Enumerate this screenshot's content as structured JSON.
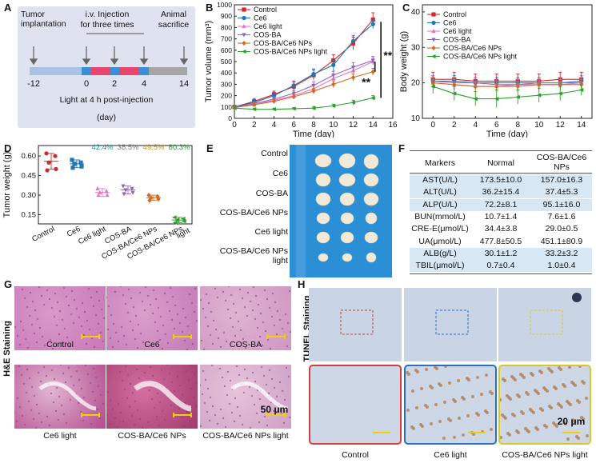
{
  "panels": {
    "A": "A",
    "B": "B",
    "C": "C",
    "D": "D",
    "E": "E",
    "F": "F",
    "G": "G",
    "H": "H"
  },
  "timeline": {
    "tumor_implantation": "Tumor implantation",
    "injection_line1": "i.v. Injection",
    "injection_line2": "for three times",
    "animal_line1": "Animal",
    "animal_line2": "sacrifice",
    "ticks": [
      "-12",
      "0",
      "2",
      "4",
      "14"
    ],
    "light_note": "Light at 4 h post-injection",
    "unit": "(day)",
    "colors": {
      "grey": "#a5a5a5",
      "blue": "#3b8fd6",
      "pink": "#e8446e",
      "lightblue": "#a9c3e6",
      "bg": "#dfe3ef"
    }
  },
  "chart_data": [
    {
      "panel": "B",
      "type": "line",
      "x": [
        0,
        2,
        4,
        6,
        8,
        10,
        12,
        14
      ],
      "xlabel": "Time (day)",
      "ylabel": "Tumor volume (mm³)",
      "xlim": [
        0,
        16
      ],
      "ylim": [
        0,
        1000
      ],
      "xticks": [
        "0",
        "2",
        "4",
        "6",
        "8",
        "10",
        "12",
        "14",
        "16"
      ],
      "yticks": [
        "0",
        "100",
        "200",
        "300",
        "400",
        "500",
        "600",
        "700",
        "800",
        "900",
        "1000"
      ],
      "annotations": [
        "**",
        "**"
      ],
      "series": [
        {
          "name": "Control",
          "color": "#d62728",
          "marker": "square",
          "values": [
            100,
            150,
            210,
            280,
            380,
            510,
            660,
            870
          ],
          "err": [
            15,
            25,
            30,
            40,
            45,
            50,
            55,
            60
          ]
        },
        {
          "name": "Ce6",
          "color": "#1f77b4",
          "marker": "circle",
          "values": [
            100,
            140,
            200,
            290,
            390,
            470,
            680,
            830
          ],
          "err": [
            15,
            25,
            30,
            40,
            45,
            55,
            50,
            40
          ]
        },
        {
          "name": "Ce6 light",
          "color": "#e377c2",
          "marker": "triangle",
          "values": [
            95,
            120,
            160,
            200,
            260,
            350,
            420,
            500
          ],
          "err": [
            10,
            15,
            20,
            25,
            30,
            35,
            40,
            30
          ]
        },
        {
          "name": "COS-BA",
          "color": "#9467bd",
          "marker": "triangle-down",
          "values": [
            95,
            130,
            170,
            220,
            290,
            380,
            450,
            510
          ],
          "err": [
            10,
            15,
            20,
            25,
            30,
            35,
            40,
            35
          ]
        },
        {
          "name": "COS-BA/Ce6 NPs",
          "color": "#d2691e",
          "marker": "diamond",
          "values": [
            95,
            120,
            150,
            190,
            240,
            300,
            360,
            410
          ],
          "err": [
            10,
            15,
            20,
            20,
            25,
            30,
            30,
            30
          ]
        },
        {
          "name": "COS-BA/Ce6 NPs light",
          "color": "#2ca02c",
          "marker": "triangle-left",
          "values": [
            90,
            80,
            80,
            85,
            90,
            110,
            140,
            180
          ],
          "err": [
            10,
            10,
            10,
            10,
            15,
            15,
            20,
            20
          ]
        }
      ]
    },
    {
      "panel": "C",
      "type": "line",
      "x": [
        0,
        2,
        4,
        6,
        8,
        10,
        12,
        14
      ],
      "xlabel": "Time (day)",
      "ylabel": "Body weight (g)",
      "xlim": [
        -1,
        15
      ],
      "ylim": [
        10,
        42
      ],
      "xticks": [
        "0",
        "2",
        "4",
        "6",
        "8",
        "10",
        "12",
        "14"
      ],
      "yticks": [
        "10",
        "20",
        "30",
        "40"
      ],
      "series": [
        {
          "name": "Control",
          "color": "#d62728",
          "marker": "square",
          "values": [
            21,
            21,
            20.5,
            20.5,
            20.5,
            20.5,
            21,
            21
          ],
          "err": [
            2,
            2,
            2,
            2,
            2,
            2,
            2,
            2
          ]
        },
        {
          "name": "Ce6",
          "color": "#1f77b4",
          "marker": "circle",
          "values": [
            20.5,
            20.5,
            20,
            20,
            20,
            20,
            20,
            20.5
          ],
          "err": [
            1.5,
            1.5,
            1.5,
            1.5,
            1.5,
            1.5,
            1.5,
            1.5
          ]
        },
        {
          "name": "Ce6 light",
          "color": "#e377c2",
          "marker": "triangle",
          "values": [
            20,
            19.5,
            19,
            19,
            19.5,
            19.5,
            19.5,
            20
          ],
          "err": [
            1.5,
            1.5,
            1.5,
            1.5,
            1.5,
            1.5,
            1.5,
            1.5
          ]
        },
        {
          "name": "COS-BA",
          "color": "#9467bd",
          "marker": "triangle-down",
          "values": [
            20.5,
            20,
            20,
            19.5,
            19.5,
            20,
            20,
            20
          ],
          "err": [
            1.5,
            1.5,
            1.5,
            1.5,
            1.5,
            1.5,
            1.5,
            1.5
          ]
        },
        {
          "name": "COS-BA/Ce6 NPs",
          "color": "#d2691e",
          "marker": "diamond",
          "values": [
            20,
            19.5,
            19,
            19,
            19,
            19.5,
            19.5,
            19.5
          ],
          "err": [
            1.5,
            1.5,
            1.5,
            1.5,
            1.5,
            1.5,
            1.5,
            1.5
          ]
        },
        {
          "name": "COS-BA/Ce6 NPs light",
          "color": "#2ca02c",
          "marker": "triangle-left",
          "values": [
            19,
            17,
            15.5,
            15.5,
            16,
            16.5,
            17,
            18
          ],
          "err": [
            2,
            2,
            2,
            2.5,
            2,
            2,
            2,
            1.5
          ]
        }
      ]
    },
    {
      "panel": "D",
      "type": "scatter",
      "ylabel": "Tumor weight (g)",
      "ylim": [
        0.08,
        0.68
      ],
      "yticks": [
        "0.15",
        "0.30",
        "0.45",
        "0.60"
      ],
      "categories": [
        "Control",
        "Ce6",
        "Ce6 light",
        "COS-BA",
        "COS-BA/Ce6 NPs",
        "COS-BA/Ce6 NPs\nlight"
      ],
      "percent_labels": [
        "",
        "",
        "42.4%",
        "38.5%",
        "49.5%",
        "80.3%"
      ],
      "groups": [
        {
          "name": "Control",
          "color": "#d62728",
          "marker": "circle",
          "mean": 0.56,
          "sd": 0.06,
          "points": [
            0.62,
            0.6,
            0.55,
            0.5,
            0.49
          ]
        },
        {
          "name": "Ce6",
          "color": "#1f77b4",
          "marker": "square",
          "mean": 0.54,
          "sd": 0.03,
          "points": [
            0.57,
            0.55,
            0.54,
            0.52,
            0.51
          ]
        },
        {
          "name": "Ce6 light",
          "color": "#e377c2",
          "marker": "triangle",
          "mean": 0.32,
          "sd": 0.03,
          "points": [
            0.35,
            0.33,
            0.32,
            0.3,
            0.3
          ]
        },
        {
          "name": "COS-BA",
          "color": "#9467bd",
          "marker": "triangle-down",
          "mean": 0.34,
          "sd": 0.03,
          "points": [
            0.37,
            0.35,
            0.34,
            0.32,
            0.31
          ]
        },
        {
          "name": "COS-BA/Ce6 NPs",
          "color": "#d2691e",
          "marker": "diamond",
          "mean": 0.28,
          "sd": 0.02,
          "points": [
            0.3,
            0.29,
            0.28,
            0.27,
            0.26
          ]
        },
        {
          "name": "COS-BA/Ce6 NPs light",
          "color": "#2ca02c",
          "marker": "triangle-left",
          "mean": 0.11,
          "sd": 0.02,
          "points": [
            0.13,
            0.12,
            0.11,
            0.1,
            0.09
          ]
        }
      ]
    }
  ],
  "percent_colors": [
    "#1f8fa0",
    "#7a7a7a",
    "#b8911a",
    "#2e9a3a"
  ],
  "tumor_photo": {
    "row_labels": [
      "Control",
      "Ce6",
      "COS-BA",
      "COS-BA/Ce6 NPs",
      "Ce6 light",
      "COS-BA/Ce6 NPs\nlight"
    ],
    "bg_color": "#2b8fd6"
  },
  "table": {
    "headers": [
      "Markers",
      "Normal",
      "COS-BA/Ce6\nNPs"
    ],
    "rows": [
      [
        "AST(U/L)",
        "173.5±10.0",
        "157.0±16.3"
      ],
      [
        "ALT(U/L)",
        "36.2±15.4",
        "37.4±5.3"
      ],
      [
        "ALP(U/L)",
        "72.2±8.1",
        "95.1±16.0"
      ],
      [
        "BUN(mmol/L)",
        "10.7±1.4",
        "7.6±1.6"
      ],
      [
        "CRE-E(μmol/L)",
        "34.4±3.8",
        "29.0±0.5"
      ],
      [
        "UA(μmol/L)",
        "477.8±50.5",
        "451.1±80.9"
      ],
      [
        "ALB(g/L)",
        "30.1±1.2",
        "33.2±3.2"
      ],
      [
        "TBIL(μmol/L)",
        "0.7±0.4",
        "1.0±0.4"
      ]
    ],
    "highlight_color": "#d7e7f4"
  },
  "he": {
    "side_label": "H&E Staining",
    "captions": [
      "Control",
      "Ce6",
      "COS-BA",
      "Ce6 light",
      "COS-BA/Ce6 NPs",
      "COS-BA/Ce6 NPs light"
    ],
    "scale": "50 μm"
  },
  "tunel": {
    "side_label": "TUNEL Staining",
    "captions": [
      "Control",
      "Ce6 light",
      "COS-BA/Ce6 NPs light"
    ],
    "scale": "20 μm",
    "frame_colors": [
      "#d04040",
      "#2b70c0",
      "#d8c82a"
    ]
  }
}
